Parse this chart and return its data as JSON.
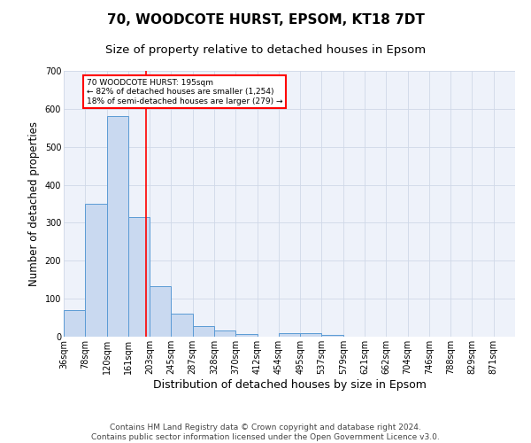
{
  "title1": "70, WOODCOTE HURST, EPSOM, KT18 7DT",
  "title2": "Size of property relative to detached houses in Epsom",
  "xlabel": "Distribution of detached houses by size in Epsom",
  "ylabel": "Number of detached properties",
  "bin_labels": [
    "36sqm",
    "78sqm",
    "120sqm",
    "161sqm",
    "203sqm",
    "245sqm",
    "287sqm",
    "328sqm",
    "370sqm",
    "412sqm",
    "454sqm",
    "495sqm",
    "537sqm",
    "579sqm",
    "621sqm",
    "662sqm",
    "704sqm",
    "746sqm",
    "788sqm",
    "829sqm",
    "871sqm"
  ],
  "bar_values": [
    70,
    350,
    580,
    315,
    132,
    60,
    27,
    16,
    7,
    1,
    10,
    10,
    5,
    0,
    0,
    0,
    0,
    0,
    0,
    0,
    0
  ],
  "bar_color": "#c9d9f0",
  "bar_edge_color": "#5b9bd5",
  "grid_color": "#d0d8e8",
  "background_color": "#eef2fa",
  "vline_color": "red",
  "vline_pos": 3.81,
  "annotation_text": "70 WOODCOTE HURST: 195sqm\n← 82% of detached houses are smaller (1,254)\n18% of semi-detached houses are larger (279) →",
  "annotation_box_color": "white",
  "annotation_box_edge": "red",
  "ylim": [
    0,
    700
  ],
  "yticks": [
    0,
    100,
    200,
    300,
    400,
    500,
    600,
    700
  ],
  "footer": "Contains HM Land Registry data © Crown copyright and database right 2024.\nContains public sector information licensed under the Open Government Licence v3.0.",
  "title1_fontsize": 11,
  "title2_fontsize": 9.5,
  "xlabel_fontsize": 9,
  "ylabel_fontsize": 8.5,
  "tick_fontsize": 7,
  "footer_fontsize": 6.5
}
